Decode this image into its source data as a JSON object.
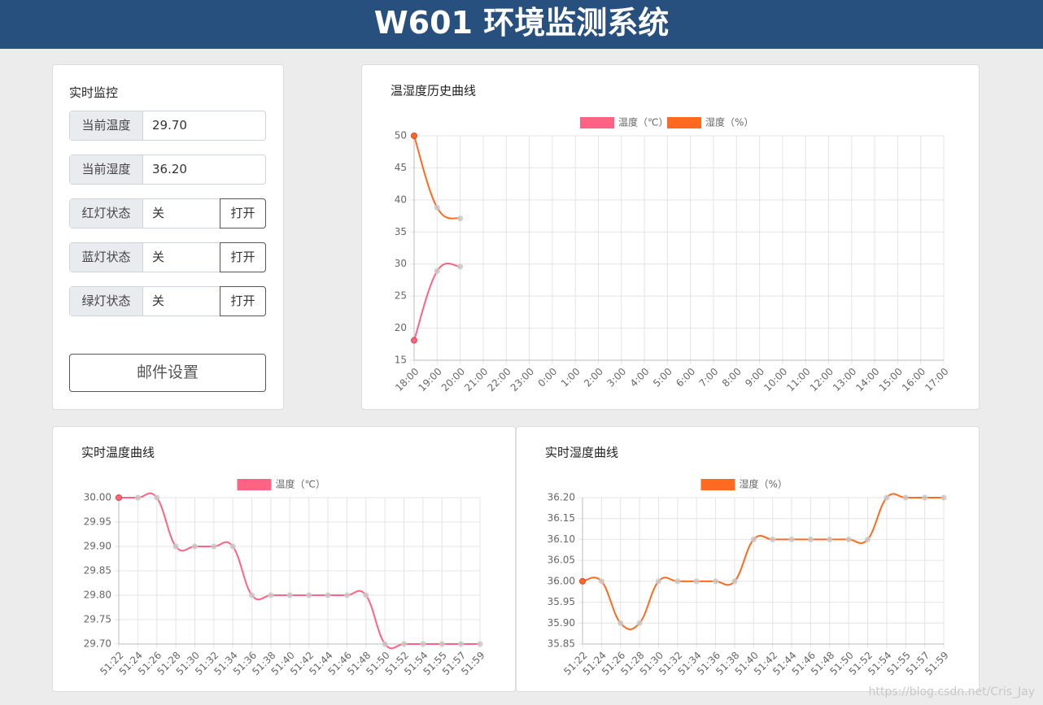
{
  "header": {
    "title": "W601 环境监测系统"
  },
  "panel": {
    "title": "实时监控",
    "rows": [
      {
        "label": "当前温度",
        "value": "29.70"
      },
      {
        "label": "当前湿度",
        "value": "36.20"
      },
      {
        "label": "红灯状态",
        "value": "关",
        "button": "打开"
      },
      {
        "label": "蓝灯状态",
        "value": "关",
        "button": "打开"
      },
      {
        "label": "绿灯状态",
        "value": "关",
        "button": "打开"
      }
    ],
    "mail_button": "邮件设置"
  },
  "watermark": "https://blog.csdn.net/Cris_Jay",
  "chart_data": [
    {
      "type": "line",
      "title": "温湿度历史曲线",
      "categories": [
        "18:00",
        "19:00",
        "20:00",
        "21:00",
        "22:00",
        "23:00",
        "0:00",
        "1:00",
        "2:00",
        "3:00",
        "4:00",
        "5:00",
        "6:00",
        "7:00",
        "8:00",
        "9:00",
        "10:00",
        "11:00",
        "12:00",
        "13:00",
        "14:00",
        "15:00",
        "16:00",
        "17:00"
      ],
      "series": [
        {
          "name": "温度（℃）",
          "color": "#ff6384",
          "values": [
            18.1,
            28.9,
            29.6,
            null,
            null,
            null,
            null,
            null,
            null,
            null,
            null,
            null,
            null,
            null,
            null,
            null,
            null,
            null,
            null,
            null,
            null,
            null,
            null,
            null
          ]
        },
        {
          "name": "湿度（%）",
          "color": "#ff6a1f",
          "values": [
            50,
            38.8,
            37.1,
            null,
            null,
            null,
            null,
            null,
            null,
            null,
            null,
            null,
            null,
            null,
            null,
            null,
            null,
            null,
            null,
            null,
            null,
            null,
            null,
            null
          ]
        }
      ],
      "ylim": [
        15,
        50
      ],
      "yticks": [
        15,
        20,
        25,
        30,
        35,
        40,
        45,
        50
      ],
      "grid": true,
      "legend": "top"
    },
    {
      "type": "line",
      "title": "实时温度曲线",
      "categories": [
        "51:22",
        "51:24",
        "51:26",
        "51:28",
        "51:30",
        "51:32",
        "51:34",
        "51:36",
        "51:38",
        "51:40",
        "51:42",
        "51:44",
        "51:46",
        "51:48",
        "51:50",
        "51:52",
        "51:54",
        "51:55",
        "51:57",
        "51:59"
      ],
      "series": [
        {
          "name": "温度（℃）",
          "color": "#ff6384",
          "values": [
            30,
            30,
            30,
            29.9,
            29.9,
            29.9,
            29.9,
            29.8,
            29.8,
            29.8,
            29.8,
            29.8,
            29.8,
            29.8,
            29.7,
            29.7,
            29.7,
            29.7,
            29.7,
            29.7
          ]
        }
      ],
      "ylim": [
        29.7,
        30
      ],
      "yticks": [
        {
          "value": 29.7,
          "label": "29.70"
        },
        {
          "value": 29.75,
          "label": "29.75"
        },
        {
          "value": 29.8,
          "label": "29.80"
        },
        {
          "value": 29.85,
          "label": "29.85"
        },
        {
          "value": 29.9,
          "label": "29.90"
        },
        {
          "value": 29.95,
          "label": "29.95"
        },
        {
          "value": 30,
          "label": "30.00"
        }
      ],
      "grid": true,
      "legend": "top"
    },
    {
      "type": "line",
      "title": "实时湿度曲线",
      "categories": [
        "51:22",
        "51:24",
        "51:26",
        "51:28",
        "51:30",
        "51:32",
        "51:34",
        "51:36",
        "51:38",
        "51:40",
        "51:42",
        "51:44",
        "51:46",
        "51:48",
        "51:50",
        "51:52",
        "51:54",
        "51:55",
        "51:57",
        "51:59"
      ],
      "series": [
        {
          "name": "湿度（%）",
          "color": "#ff6a1f",
          "values": [
            36,
            36,
            35.9,
            35.9,
            36,
            36,
            36,
            36,
            36,
            36.1,
            36.1,
            36.1,
            36.1,
            36.1,
            36.1,
            36.1,
            36.2,
            36.2,
            36.2,
            36.2
          ]
        }
      ],
      "ylim": [
        35.85,
        36.2
      ],
      "yticks": [
        {
          "value": 35.85,
          "label": "35.85"
        },
        {
          "value": 35.9,
          "label": "35.90"
        },
        {
          "value": 35.95,
          "label": "35.95"
        },
        {
          "value": 36,
          "label": "36.00"
        },
        {
          "value": 36.05,
          "label": "36.05"
        },
        {
          "value": 36.1,
          "label": "36.10"
        },
        {
          "value": 36.15,
          "label": "36.15"
        },
        {
          "value": 36.2,
          "label": "36.20"
        }
      ],
      "grid": true,
      "legend": "top"
    }
  ]
}
